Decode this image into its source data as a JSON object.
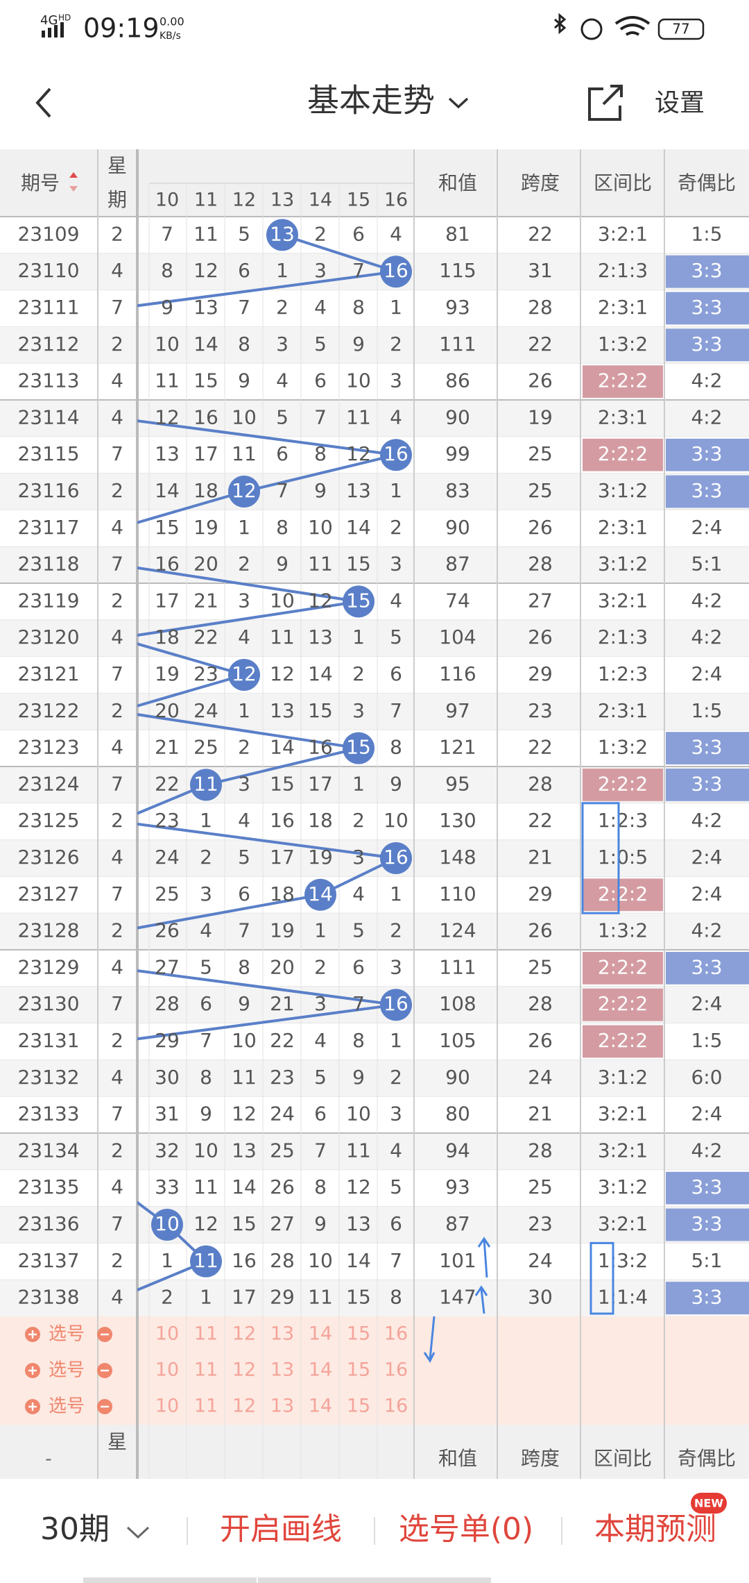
{
  "status_bar": {
    "network": "4G",
    "network_sub": "HD",
    "time": "09:19",
    "speed": "0.00",
    "speed_unit": "KB/s",
    "battery": "77"
  },
  "header": {
    "title": "基本走势",
    "settings": "设置"
  },
  "table": {
    "columns": {
      "period": "期号",
      "weekday": [
        "星",
        "期"
      ],
      "numbers": [
        10,
        11,
        12,
        13,
        14,
        15,
        16
      ],
      "sum": "和值",
      "span": "跨度",
      "zone": "区间比",
      "odd_even": "奇偶比"
    },
    "rows": [
      {
        "period": "23109",
        "weekday": "2",
        "cells": [
          7,
          11,
          5,
          13,
          2,
          6,
          4
        ],
        "hit": 3,
        "sum": 81,
        "span": 22,
        "zone": "3:2:1",
        "odd_even": "1:5"
      },
      {
        "period": "23110",
        "weekday": "4",
        "cells": [
          8,
          12,
          6,
          1,
          3,
          7,
          16
        ],
        "hit": 6,
        "sum": 115,
        "span": 31,
        "zone": "2:1:3",
        "odd_even": "3:3",
        "odd_even_highlight": true
      },
      {
        "period": "23111",
        "weekday": "7",
        "cells": [
          9,
          13,
          7,
          2,
          4,
          8,
          1
        ],
        "sum": 93,
        "span": 28,
        "zone": "2:3:1",
        "odd_even": "3:3",
        "odd_even_highlight": true
      },
      {
        "period": "23112",
        "weekday": "2",
        "cells": [
          10,
          14,
          8,
          3,
          5,
          9,
          2
        ],
        "sum": 111,
        "span": 22,
        "zone": "1:3:2",
        "odd_even": "3:3",
        "odd_even_highlight": true
      },
      {
        "period": "23113",
        "weekday": "4",
        "cells": [
          11,
          15,
          9,
          4,
          6,
          10,
          3
        ],
        "sum": 86,
        "span": 26,
        "zone": "2:2:2",
        "zone_highlight": true,
        "odd_even": "4:2"
      },
      {
        "period": "23114",
        "weekday": "4",
        "cells": [
          12,
          16,
          10,
          5,
          7,
          11,
          4
        ],
        "sum": 90,
        "span": 19,
        "zone": "2:3:1",
        "odd_even": "4:2"
      },
      {
        "period": "23115",
        "weekday": "7",
        "cells": [
          13,
          17,
          11,
          6,
          8,
          12,
          16
        ],
        "hit": 6,
        "sum": 99,
        "span": 25,
        "zone": "2:2:2",
        "zone_highlight": true,
        "odd_even": "3:3",
        "odd_even_highlight": true
      },
      {
        "period": "23116",
        "weekday": "2",
        "cells": [
          14,
          18,
          12,
          7,
          9,
          13,
          1
        ],
        "hit": 2,
        "sum": 83,
        "span": 25,
        "zone": "3:1:2",
        "odd_even": "3:3",
        "odd_even_highlight": true
      },
      {
        "period": "23117",
        "weekday": "4",
        "cells": [
          15,
          19,
          1,
          8,
          10,
          14,
          2
        ],
        "sum": 90,
        "span": 26,
        "zone": "2:3:1",
        "odd_even": "2:4"
      },
      {
        "period": "23118",
        "weekday": "7",
        "cells": [
          16,
          20,
          2,
          9,
          11,
          15,
          3
        ],
        "sum": 87,
        "span": 28,
        "zone": "3:1:2",
        "odd_even": "5:1"
      },
      {
        "period": "23119",
        "weekday": "2",
        "cells": [
          17,
          21,
          3,
          10,
          12,
          15,
          4
        ],
        "hit": 5,
        "sum": 74,
        "span": 27,
        "zone": "3:2:1",
        "odd_even": "4:2"
      },
      {
        "period": "23120",
        "weekday": "4",
        "cells": [
          18,
          22,
          4,
          11,
          13,
          1,
          5
        ],
        "sum": 104,
        "span": 26,
        "zone": "2:1:3",
        "odd_even": "4:2"
      },
      {
        "period": "23121",
        "weekday": "7",
        "cells": [
          19,
          23,
          12,
          12,
          14,
          2,
          6
        ],
        "hit": 2,
        "sum": 116,
        "span": 29,
        "zone": "1:2:3",
        "odd_even": "2:4"
      },
      {
        "period": "23122",
        "weekday": "2",
        "cells": [
          20,
          24,
          1,
          13,
          15,
          3,
          7
        ],
        "sum": 97,
        "span": 23,
        "zone": "2:3:1",
        "odd_even": "1:5"
      },
      {
        "period": "23123",
        "weekday": "4",
        "cells": [
          21,
          25,
          2,
          14,
          16,
          15,
          8
        ],
        "hit": 5,
        "sum": 121,
        "span": 22,
        "zone": "1:3:2",
        "odd_even": "3:3",
        "odd_even_highlight": true
      },
      {
        "period": "23124",
        "weekday": "7",
        "cells": [
          22,
          11,
          3,
          15,
          17,
          1,
          9
        ],
        "hit": 1,
        "sum": 95,
        "span": 28,
        "zone": "2:2:2",
        "zone_highlight": true,
        "odd_even": "3:3",
        "odd_even_highlight": true
      },
      {
        "period": "23125",
        "weekday": "2",
        "cells": [
          23,
          1,
          4,
          16,
          18,
          2,
          10
        ],
        "sum": 130,
        "span": 22,
        "zone": "1:2:3",
        "odd_even": "4:2"
      },
      {
        "period": "23126",
        "weekday": "4",
        "cells": [
          24,
          2,
          5,
          17,
          19,
          3,
          16
        ],
        "hit": 6,
        "sum": 148,
        "span": 21,
        "zone": "1:0:5",
        "odd_even": "2:4"
      },
      {
        "period": "23127",
        "weekday": "7",
        "cells": [
          25,
          3,
          6,
          18,
          14,
          4,
          1
        ],
        "hit": 4,
        "sum": 110,
        "span": 29,
        "zone": "2:2:2",
        "zone_highlight": true,
        "odd_even": "2:4"
      },
      {
        "period": "23128",
        "weekday": "2",
        "cells": [
          26,
          4,
          7,
          19,
          1,
          5,
          2
        ],
        "sum": 124,
        "span": 26,
        "zone": "1:3:2",
        "odd_even": "4:2"
      },
      {
        "period": "23129",
        "weekday": "4",
        "cells": [
          27,
          5,
          8,
          20,
          2,
          6,
          3
        ],
        "sum": 111,
        "span": 25,
        "zone": "2:2:2",
        "zone_highlight": true,
        "odd_even": "3:3",
        "odd_even_highlight": true
      },
      {
        "period": "23130",
        "weekday": "7",
        "cells": [
          28,
          6,
          9,
          21,
          3,
          7,
          16
        ],
        "hit": 6,
        "sum": 108,
        "span": 28,
        "zone": "2:2:2",
        "zone_highlight": true,
        "odd_even": "2:4"
      },
      {
        "period": "23131",
        "weekday": "2",
        "cells": [
          29,
          7,
          10,
          22,
          4,
          8,
          1
        ],
        "sum": 105,
        "span": 26,
        "zone": "2:2:2",
        "zone_highlight": true,
        "odd_even": "1:5"
      },
      {
        "period": "23132",
        "weekday": "4",
        "cells": [
          30,
          8,
          11,
          23,
          5,
          9,
          2
        ],
        "sum": 90,
        "span": 24,
        "zone": "3:1:2",
        "odd_even": "6:0"
      },
      {
        "period": "23133",
        "weekday": "7",
        "cells": [
          31,
          9,
          12,
          24,
          6,
          10,
          3
        ],
        "sum": 80,
        "span": 21,
        "zone": "3:2:1",
        "odd_even": "2:4"
      },
      {
        "period": "23134",
        "weekday": "2",
        "cells": [
          32,
          10,
          13,
          25,
          7,
          11,
          4
        ],
        "sum": 94,
        "span": 28,
        "zone": "3:2:1",
        "odd_even": "4:2"
      },
      {
        "period": "23135",
        "weekday": "4",
        "cells": [
          33,
          11,
          14,
          26,
          8,
          12,
          5
        ],
        "sum": 93,
        "span": 25,
        "zone": "3:1:2",
        "odd_even": "3:3",
        "odd_even_highlight": true
      },
      {
        "period": "23136",
        "weekday": "7",
        "cells": [
          10,
          12,
          15,
          27,
          9,
          13,
          6
        ],
        "hit": 0,
        "sum": 87,
        "span": 23,
        "zone": "3:2:1",
        "odd_even": "3:3",
        "odd_even_highlight": true
      },
      {
        "period": "23137",
        "weekday": "2",
        "cells": [
          1,
          11,
          16,
          28,
          10,
          14,
          7
        ],
        "hit": 1,
        "sum": 101,
        "span": 24,
        "zone": "1:3:2",
        "odd_even": "5:1"
      },
      {
        "period": "23138",
        "weekday": "4",
        "cells": [
          2,
          1,
          17,
          29,
          11,
          15,
          8
        ],
        "sum": 147,
        "span": 30,
        "zone": "1:1:4",
        "odd_even": "3:3",
        "odd_even_highlight": true
      }
    ]
  },
  "selector": {
    "label": "选号",
    "numbers": [
      10,
      11,
      12,
      13,
      14,
      15,
      16
    ]
  },
  "footer_header": {
    "period": "-",
    "weekday": "星",
    "sum": "和值",
    "span": "跨度",
    "zone": "区间比",
    "odd_even": "奇偶比"
  },
  "bottom_bar": {
    "periods": "30期",
    "draw": "开启画线",
    "list": "选号单(0)",
    "predict": "本期预测",
    "badge": "NEW"
  }
}
